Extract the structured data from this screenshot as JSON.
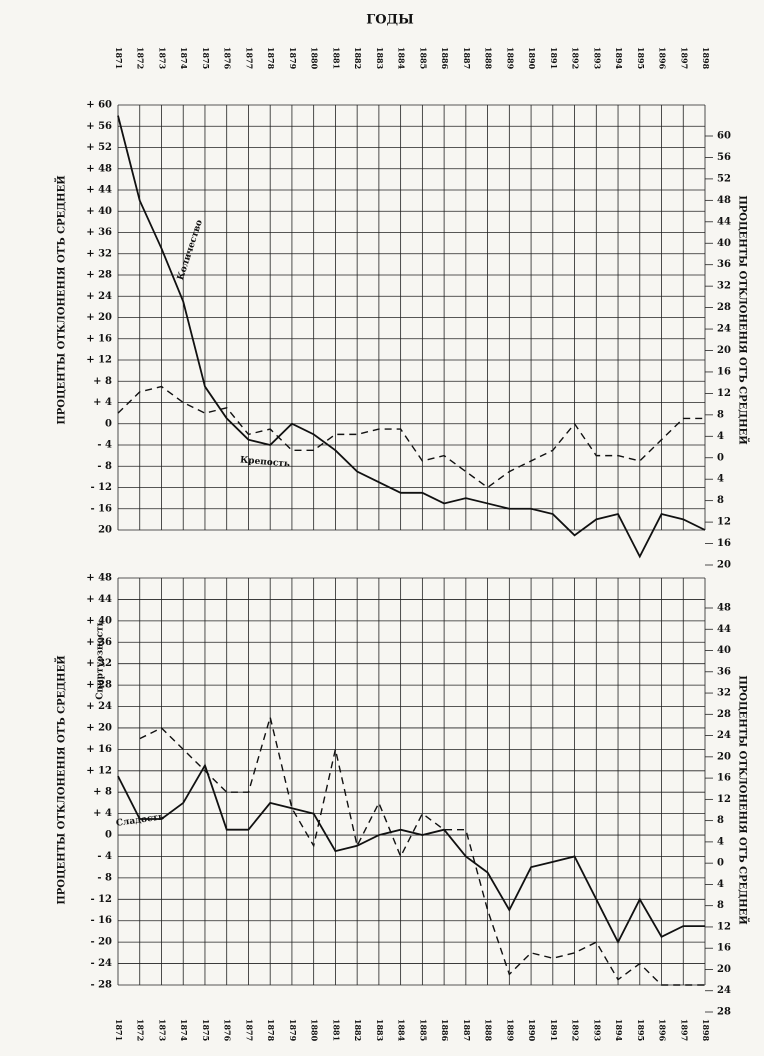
{
  "header": {
    "title": "ГОДЫ"
  },
  "chart_data": [
    {
      "type": "line",
      "y_label": "ПРОЦЕНТЫ ОТКЛОНЕНІЯ ОТЪ СРЕДНЕЙ",
      "y2_label": "ПРОЦЕНТЫ ОТКЛОНЕНІЯ ОТЪ СРЕДНЕЙ",
      "categories": [
        "1871",
        "1872",
        "1873",
        "1874",
        "1875",
        "1876",
        "1877",
        "1878",
        "1879",
        "1880",
        "1881",
        "1882",
        "1883",
        "1884",
        "1885",
        "1886",
        "1887",
        "1888",
        "1889",
        "1890",
        "1891",
        "1892",
        "1893",
        "1894",
        "1895",
        "1896",
        "1897",
        "1898"
      ],
      "series": [
        {
          "name": "Количество",
          "color": "#111111",
          "dash": false,
          "values": [
            58,
            42,
            33,
            23,
            7,
            1,
            -3,
            -4,
            0,
            -2,
            -5,
            -9,
            -11,
            -13,
            -13,
            -15,
            -14,
            -15,
            -16,
            -16,
            -17,
            -21,
            -18,
            -17,
            -25,
            -17,
            -18,
            -20
          ]
        },
        {
          "name": "Крепость",
          "color": "#111111",
          "dash": true,
          "values": [
            2,
            6,
            7,
            4,
            2,
            3,
            -2,
            -1,
            -5,
            -5,
            -2,
            -2,
            -1,
            -1,
            -7,
            -6,
            -9,
            -12,
            -9,
            -7,
            -5,
            0,
            -6,
            -6,
            -7,
            -3,
            1,
            1
          ]
        }
      ],
      "ylim": [
        -20,
        60
      ],
      "yticks": [
        {
          "value": 60,
          "label": "+ 60"
        },
        {
          "value": 56,
          "label": "+ 56"
        },
        {
          "value": 52,
          "label": "+ 52"
        },
        {
          "value": 48,
          "label": "+ 48"
        },
        {
          "value": 44,
          "label": "+ 44"
        },
        {
          "value": 40,
          "label": "+ 40"
        },
        {
          "value": 36,
          "label": "+ 36"
        },
        {
          "value": 32,
          "label": "+ 32"
        },
        {
          "value": 28,
          "label": "+ 28"
        },
        {
          "value": 24,
          "label": "+ 24"
        },
        {
          "value": 20,
          "label": "+ 20"
        },
        {
          "value": 16,
          "label": "+ 16"
        },
        {
          "value": 12,
          "label": "+ 12"
        },
        {
          "value": 8,
          "label": "+ 8"
        },
        {
          "value": 4,
          "label": "+ 4"
        },
        0,
        {
          "value": -4,
          "label": "- 4"
        },
        {
          "value": -8,
          "label": "- 8"
        },
        {
          "value": -12,
          "label": "- 12"
        },
        {
          "value": -16,
          "label": "- 16"
        },
        {
          "value": -20,
          "label": "20"
        }
      ],
      "y2lim": [
        -20,
        60
      ],
      "y2ticks": [
        60,
        56,
        52,
        48,
        44,
        40,
        36,
        32,
        28,
        24,
        20,
        16,
        12,
        8,
        4,
        0,
        {
          "value": -4,
          "label": "4"
        },
        {
          "value": -8,
          "label": "8"
        },
        {
          "value": -12,
          "label": "12"
        },
        {
          "value": -16,
          "label": "16"
        },
        {
          "value": -20,
          "label": "20"
        }
      ],
      "grid": true
    },
    {
      "type": "line",
      "y_label": "ПРОЦЕНТЫ ОТКЛОНЕНІЯ ОТЪ СРЕДНЕЙ",
      "y2_label": "ПРОЦЕНТЫ ОТКЛОНЕНІЯ ОТЪ СРЕДНЕЙ",
      "categories": [
        "1871",
        "1872",
        "1873",
        "1874",
        "1875",
        "1876",
        "1877",
        "1878",
        "1879",
        "1880",
        "1881",
        "1882",
        "1883",
        "1884",
        "1885",
        "1886",
        "1887",
        "1888",
        "1889",
        "1890",
        "1891",
        "1892",
        "1893",
        "1894",
        "1895",
        "1896",
        "1897",
        "1898"
      ],
      "series": [
        {
          "name": "Сладость",
          "color": "#111111",
          "dash": false,
          "values": [
            11,
            3,
            3,
            6,
            13,
            1,
            1,
            6,
            5,
            4,
            -3,
            -2,
            0,
            1,
            0,
            1,
            -4,
            -7,
            -14,
            -6,
            -5,
            -4,
            -12,
            -20,
            -12,
            -19,
            -17,
            -17
          ]
        },
        {
          "name": "Спиртуозность",
          "color": "#111111",
          "dash": true,
          "values": [
            null,
            18,
            20,
            16,
            12,
            8,
            8,
            22,
            5,
            -2,
            16,
            -2,
            6,
            -4,
            4,
            1,
            1,
            -14,
            -26,
            -22,
            -23,
            -22,
            -20,
            -27,
            -24,
            -28,
            -28,
            -28
          ]
        }
      ],
      "ylim": [
        -28,
        48
      ],
      "yticks": [
        {
          "value": 48,
          "label": "+ 48"
        },
        {
          "value": 44,
          "label": "+ 44"
        },
        {
          "value": 40,
          "label": "+ 40"
        },
        {
          "value": 36,
          "label": "+ 36"
        },
        {
          "value": 32,
          "label": "+ 32"
        },
        {
          "value": 28,
          "label": "+ 28"
        },
        {
          "value": 24,
          "label": "+ 24"
        },
        {
          "value": 20,
          "label": "+ 20"
        },
        {
          "value": 16,
          "label": "+ 16"
        },
        {
          "value": 12,
          "label": "+ 12"
        },
        {
          "value": 8,
          "label": "+ 8"
        },
        {
          "value": 4,
          "label": "+ 4"
        },
        0,
        {
          "value": -4,
          "label": "- 4"
        },
        {
          "value": -8,
          "label": "- 8"
        },
        {
          "value": -12,
          "label": "- 12"
        },
        {
          "value": -16,
          "label": "- 16"
        },
        {
          "value": -20,
          "label": "- 20"
        },
        {
          "value": -24,
          "label": "- 24"
        },
        {
          "value": -28,
          "label": "- 28"
        }
      ],
      "y2lim": [
        -28,
        48
      ],
      "y2ticks": [
        48,
        44,
        40,
        36,
        32,
        28,
        24,
        20,
        16,
        12,
        8,
        4,
        0,
        {
          "value": -4,
          "label": "4"
        },
        {
          "value": -8,
          "label": "8"
        },
        {
          "value": -12,
          "label": "12"
        },
        {
          "value": -16,
          "label": "16"
        },
        {
          "value": -20,
          "label": "20"
        },
        {
          "value": -24,
          "label": "24"
        },
        {
          "value": -28,
          "label": "28"
        }
      ],
      "grid": true
    }
  ]
}
